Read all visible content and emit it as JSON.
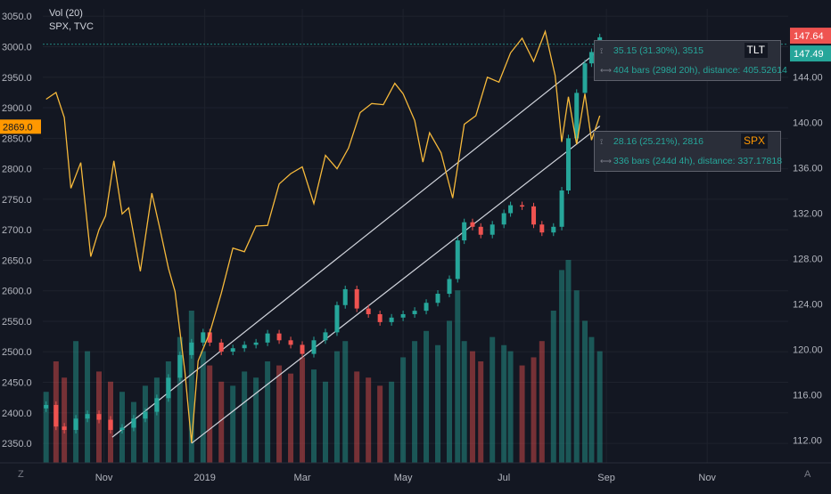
{
  "legend": {
    "indicator": "Vol (20)",
    "symbol": "SPX, TVC"
  },
  "corner": {
    "left": "Z",
    "right": "A"
  },
  "measure_tlt": {
    "line1": "35.15 (31.30%), 3515",
    "line2": "404 bars (298d 20h), distance: 405.52614",
    "tag": "TLT",
    "tag_color": "#ffffff",
    "tag_bg": "#131722"
  },
  "measure_spx": {
    "line1": "28.16 (25.21%), 2816",
    "line2": "336 bars (244d 4h), distance: 337.17818",
    "tag": "SPX",
    "tag_color": "#ff9800",
    "tag_bg": "#131722"
  },
  "colors": {
    "background": "#131722",
    "grid": "#1e222d",
    "up": "#26a69a",
    "down": "#ef5350",
    "overlay": "#f6b93b",
    "channel": "#d1d4dc"
  },
  "chart_data": {
    "type": "candlestick",
    "title": "",
    "grid": true,
    "x_axis": {
      "tick_labels": [
        "Nov",
        "2019",
        "Mar",
        "May",
        "Jul",
        "Sep",
        "Nov"
      ],
      "tick_dates": [
        "2018-11-01",
        "2019-01-01",
        "2019-03-01",
        "2019-05-01",
        "2019-07-01",
        "2019-09-01",
        "2019-11-01"
      ],
      "range": [
        "2018-09-25",
        "2019-12-20"
      ]
    },
    "y_left": {
      "tick_labels": [
        "3050.0",
        "3000.0",
        "2950.0",
        "2900.0",
        "2850.0",
        "2800.0",
        "2750.0",
        "2700.0",
        "2650.0",
        "2600.0",
        "2550.0",
        "2500.0",
        "2450.0",
        "2400.0",
        "2350.0"
      ],
      "range": [
        2318,
        3062
      ],
      "current_label": "2869.0",
      "current_value": 2869.0,
      "current_color": "#ff9800"
    },
    "y_right": {
      "tick_labels": [
        "144.00",
        "140.00",
        "136.00",
        "132.00",
        "128.00",
        "124.00",
        "120.00",
        "116.00",
        "112.00"
      ],
      "range": [
        110.0,
        150.0
      ],
      "price_labels": [
        {
          "label": "147.64",
          "value": 147.64,
          "color": "#ef5350"
        },
        {
          "label": "147.49",
          "value": 147.49,
          "color": "#26a69a"
        }
      ]
    },
    "series": [
      {
        "name": "TLT",
        "style": "candles",
        "color_up": "#26a69a",
        "color_down": "#ef5350",
        "points": [
          [
            "2018-09-27",
            115.1
          ],
          [
            "2018-10-03",
            113.2
          ],
          [
            "2018-10-08",
            112.9
          ],
          [
            "2018-10-15",
            113.9
          ],
          [
            "2018-10-22",
            114.3
          ],
          [
            "2018-10-29",
            113.8
          ],
          [
            "2018-11-05",
            112.9
          ],
          [
            "2018-11-12",
            113.1
          ],
          [
            "2018-11-19",
            113.9
          ],
          [
            "2018-11-26",
            114.5
          ],
          [
            "2018-12-03",
            115.7
          ],
          [
            "2018-12-10",
            117.5
          ],
          [
            "2018-12-17",
            119.5
          ],
          [
            "2018-12-24",
            120.6
          ],
          [
            "2018-12-31",
            121.5
          ],
          [
            "2019-01-04",
            120.6
          ],
          [
            "2019-01-11",
            119.8
          ],
          [
            "2019-01-18",
            120.1
          ],
          [
            "2019-01-25",
            120.4
          ],
          [
            "2019-02-01",
            120.6
          ],
          [
            "2019-02-08",
            121.4
          ],
          [
            "2019-02-15",
            120.8
          ],
          [
            "2019-02-22",
            120.4
          ],
          [
            "2019-03-01",
            119.6
          ],
          [
            "2019-03-08",
            120.8
          ],
          [
            "2019-03-15",
            121.5
          ],
          [
            "2019-03-22",
            123.9
          ],
          [
            "2019-03-27",
            125.3
          ],
          [
            "2019-04-03",
            123.6
          ],
          [
            "2019-04-10",
            123.1
          ],
          [
            "2019-04-17",
            122.4
          ],
          [
            "2019-04-24",
            122.8
          ],
          [
            "2019-05-01",
            123.1
          ],
          [
            "2019-05-08",
            123.4
          ],
          [
            "2019-05-15",
            124.1
          ],
          [
            "2019-05-22",
            124.9
          ],
          [
            "2019-05-29",
            126.2
          ],
          [
            "2019-06-03",
            129.6
          ],
          [
            "2019-06-07",
            131.2
          ],
          [
            "2019-06-12",
            130.8
          ],
          [
            "2019-06-17",
            130.1
          ],
          [
            "2019-06-24",
            131.0
          ],
          [
            "2019-07-01",
            132.0
          ],
          [
            "2019-07-05",
            132.7
          ],
          [
            "2019-07-12",
            132.6
          ],
          [
            "2019-07-19",
            131.0
          ],
          [
            "2019-07-24",
            130.3
          ],
          [
            "2019-07-31",
            130.8
          ],
          [
            "2019-08-05",
            134.0
          ],
          [
            "2019-08-09",
            138.6
          ],
          [
            "2019-08-14",
            142.6
          ],
          [
            "2019-08-19",
            145.2
          ],
          [
            "2019-08-23",
            146.2
          ],
          [
            "2019-08-28",
            147.5
          ]
        ]
      },
      {
        "name": "SPX",
        "style": "line",
        "color": "#f6b93b",
        "points": [
          [
            "2018-09-27",
            2914
          ],
          [
            "2018-10-03",
            2925
          ],
          [
            "2018-10-08",
            2884
          ],
          [
            "2018-10-12",
            2768
          ],
          [
            "2018-10-18",
            2810
          ],
          [
            "2018-10-24",
            2656
          ],
          [
            "2018-10-29",
            2700
          ],
          [
            "2018-11-02",
            2723
          ],
          [
            "2018-11-07",
            2813
          ],
          [
            "2018-11-12",
            2726
          ],
          [
            "2018-11-16",
            2736
          ],
          [
            "2018-11-23",
            2632
          ],
          [
            "2018-11-30",
            2760
          ],
          [
            "2018-12-05",
            2700
          ],
          [
            "2018-12-10",
            2637
          ],
          [
            "2018-12-14",
            2599
          ],
          [
            "2018-12-20",
            2467
          ],
          [
            "2018-12-24",
            2351
          ],
          [
            "2018-12-28",
            2485
          ],
          [
            "2019-01-04",
            2531
          ],
          [
            "2019-01-11",
            2596
          ],
          [
            "2019-01-18",
            2670
          ],
          [
            "2019-01-25",
            2664
          ],
          [
            "2019-02-01",
            2706
          ],
          [
            "2019-02-08",
            2707
          ],
          [
            "2019-02-15",
            2775
          ],
          [
            "2019-02-22",
            2792
          ],
          [
            "2019-03-01",
            2803
          ],
          [
            "2019-03-08",
            2743
          ],
          [
            "2019-03-15",
            2822
          ],
          [
            "2019-03-22",
            2800
          ],
          [
            "2019-03-29",
            2834
          ],
          [
            "2019-04-05",
            2892
          ],
          [
            "2019-04-12",
            2907
          ],
          [
            "2019-04-19",
            2905
          ],
          [
            "2019-04-26",
            2940
          ],
          [
            "2019-05-01",
            2923
          ],
          [
            "2019-05-08",
            2879
          ],
          [
            "2019-05-13",
            2811
          ],
          [
            "2019-05-17",
            2859
          ],
          [
            "2019-05-24",
            2826
          ],
          [
            "2019-05-31",
            2752
          ],
          [
            "2019-06-07",
            2873
          ],
          [
            "2019-06-14",
            2887
          ],
          [
            "2019-06-21",
            2950
          ],
          [
            "2019-06-28",
            2942
          ],
          [
            "2019-07-05",
            2990
          ],
          [
            "2019-07-12",
            3014
          ],
          [
            "2019-07-19",
            2976
          ],
          [
            "2019-07-26",
            3025
          ],
          [
            "2019-08-01",
            2953
          ],
          [
            "2019-08-05",
            2844
          ],
          [
            "2019-08-09",
            2918
          ],
          [
            "2019-08-14",
            2840
          ],
          [
            "2019-08-19",
            2923
          ],
          [
            "2019-08-23",
            2847
          ],
          [
            "2019-08-28",
            2887
          ]
        ]
      },
      {
        "name": "Vol (20)",
        "style": "volume",
        "values": [
          0.35,
          0.5,
          0.42,
          0.6,
          0.55,
          0.45,
          0.4,
          0.35,
          0.3,
          0.38,
          0.42,
          0.5,
          0.62,
          0.75,
          0.55,
          0.48,
          0.4,
          0.38,
          0.45,
          0.42,
          0.5,
          0.48,
          0.44,
          0.52,
          0.46,
          0.4,
          0.55,
          0.6,
          0.45,
          0.42,
          0.38,
          0.4,
          0.52,
          0.6,
          0.65,
          0.58,
          0.7,
          0.85,
          0.6,
          0.55,
          0.5,
          0.62,
          0.58,
          0.55,
          0.48,
          0.52,
          0.6,
          0.75,
          0.95,
          1.0,
          0.85,
          0.7,
          0.62,
          0.55
        ]
      }
    ],
    "annotations": [
      {
        "type": "line",
        "from": [
          "2018-11-06",
          2360
        ],
        "to": [
          "2019-08-28",
          2995
        ]
      },
      {
        "type": "line",
        "from": [
          "2018-12-24",
          2350
        ],
        "to": [
          "2019-08-28",
          2870
        ]
      },
      {
        "type": "hline",
        "value": 3004
      }
    ]
  }
}
